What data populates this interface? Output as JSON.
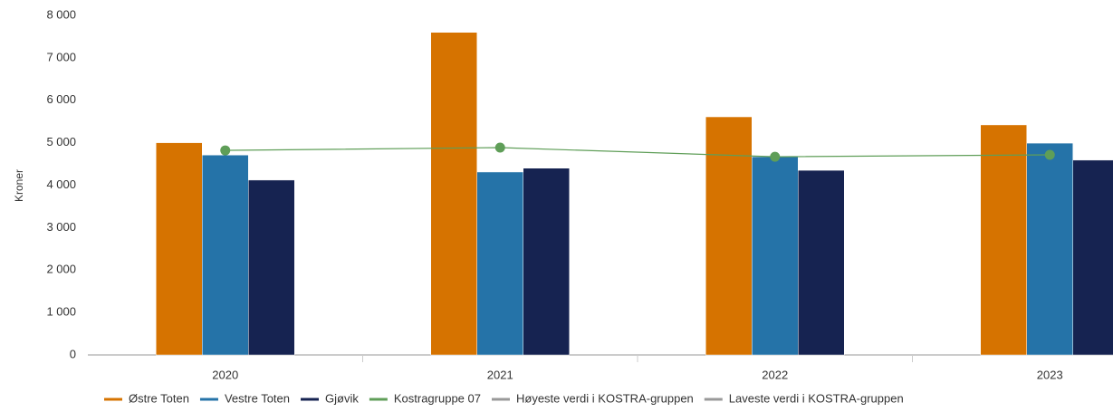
{
  "chart_data": {
    "type": "bar",
    "y_label": "Kroner",
    "categories": [
      "2020",
      "2021",
      "2022",
      "2023"
    ],
    "series": [
      {
        "name": "Østre Toten",
        "color": "#d67300",
        "values": [
          5000,
          7600,
          5610,
          5420
        ]
      },
      {
        "name": "Vestre Toten",
        "color": "#2573a8",
        "values": [
          4710,
          4310,
          4670,
          4990
        ]
      },
      {
        "name": "Gjøvik",
        "color": "#162351",
        "values": [
          4120,
          4400,
          4350,
          4590
        ]
      },
      {
        "name": "Kostragruppe 07",
        "type": "line",
        "color": "#5f9e58",
        "values": [
          4820,
          4885,
          4670,
          4715
        ]
      },
      {
        "name": "Høyeste verdi i KOSTRA-gruppen",
        "type": "line",
        "color": "#999999",
        "values": [
          null,
          null,
          null,
          null
        ]
      },
      {
        "name": "Laveste verdi i KOSTRA-gruppen",
        "type": "line",
        "color": "#999999",
        "values": [
          null,
          null,
          null,
          null
        ]
      }
    ],
    "ylim": [
      0,
      8000
    ],
    "yticks": [
      0,
      {
        "value": 1000,
        "label": "1 000"
      },
      {
        "value": 2000,
        "label": "2 000"
      },
      {
        "value": 3000,
        "label": "3 000"
      },
      {
        "value": 4000,
        "label": "4 000"
      },
      {
        "value": 5000,
        "label": "5 000"
      },
      {
        "value": 6000,
        "label": "6 000"
      },
      {
        "value": 7000,
        "label": "7 000"
      },
      {
        "value": 8000,
        "label": "8 000"
      }
    ],
    "grid": false
  }
}
